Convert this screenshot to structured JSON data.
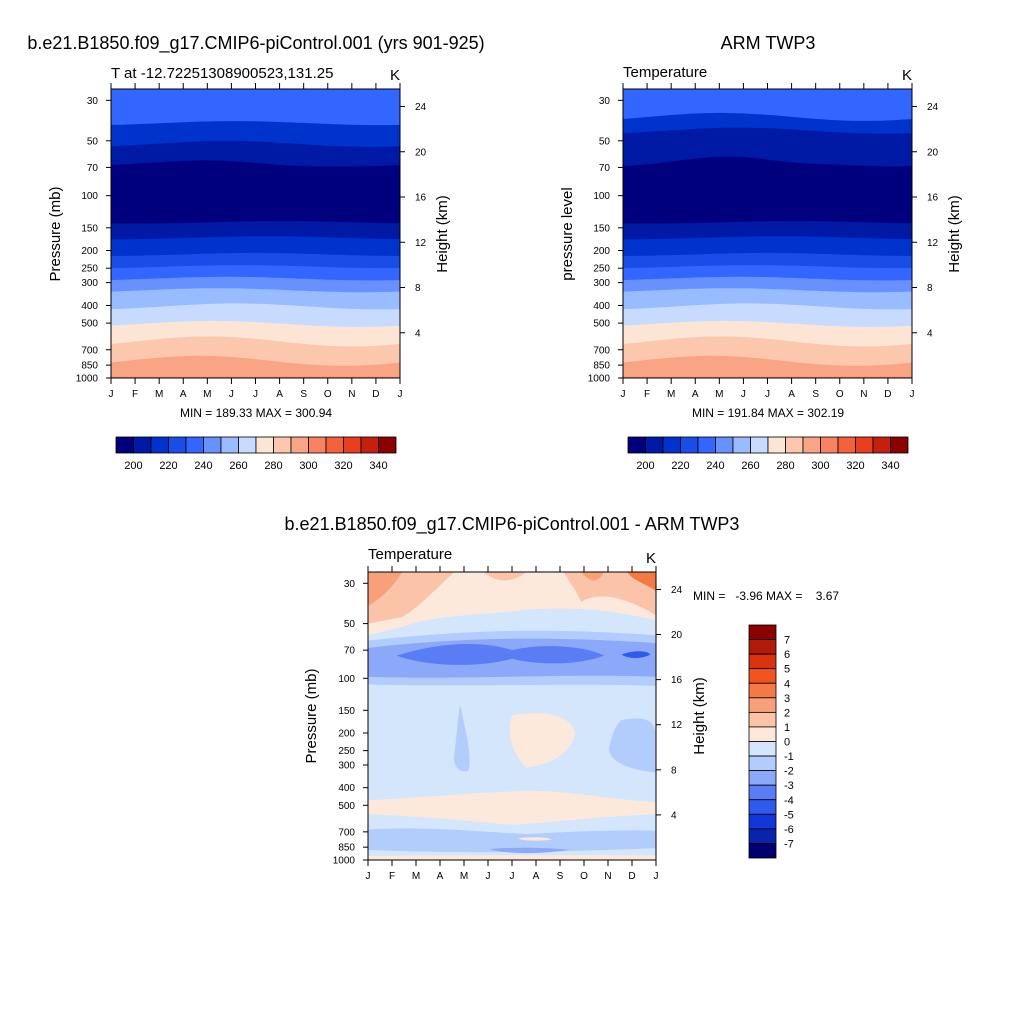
{
  "page": {
    "months": [
      "J",
      "F",
      "M",
      "A",
      "M",
      "J",
      "J",
      "A",
      "S",
      "O",
      "N",
      "D",
      "J"
    ],
    "pressure_ticks": [
      "30",
      "50",
      "70",
      "100",
      "150",
      "200",
      "250",
      "300",
      "400",
      "500",
      "700",
      "850",
      "1000"
    ],
    "height_ticks": [
      "24",
      "20",
      "16",
      "12",
      "8",
      "4"
    ],
    "units_label": "K"
  },
  "chart_data": [
    {
      "type": "heatmap",
      "title": "b.e21.B1850.f09_g17.CMIP6-piControl.001 (yrs 901-925)",
      "subtitle": "T at -12.72251308900523,131.25",
      "units": "K",
      "ylabel": "Pressure (mb)",
      "ylabel_right": "Height (km)",
      "stats": "MIN = 189.33 MAX = 300.94",
      "min": 189.33,
      "max": 300.94,
      "x": [
        "J",
        "F",
        "M",
        "A",
        "M",
        "J",
        "J",
        "A",
        "S",
        "O",
        "N",
        "D",
        "J"
      ],
      "pressure_levels": [
        30,
        50,
        70,
        100,
        150,
        200,
        250,
        300,
        400,
        500,
        700,
        850,
        1000
      ],
      "height_km": [
        24,
        20,
        16,
        12,
        8,
        4
      ],
      "colorbar_ticks": [
        "200",
        "220",
        "240",
        "260",
        "280",
        "300",
        "320",
        "340"
      ],
      "colorbar_levels": [
        190,
        200,
        210,
        220,
        230,
        240,
        250,
        260,
        270,
        280,
        290,
        300,
        310,
        320,
        330,
        340,
        350
      ]
    },
    {
      "type": "heatmap",
      "title": "ARM TWP3",
      "subtitle": "Temperature",
      "units": "K",
      "ylabel": "pressure level",
      "ylabel_right": "Height (km)",
      "stats": "MIN = 191.84 MAX = 302.19",
      "min": 191.84,
      "max": 302.19,
      "x": [
        "J",
        "F",
        "M",
        "A",
        "M",
        "J",
        "J",
        "A",
        "S",
        "O",
        "N",
        "D",
        "J"
      ],
      "pressure_levels": [
        30,
        50,
        70,
        100,
        150,
        200,
        250,
        300,
        400,
        500,
        700,
        850,
        1000
      ],
      "height_km": [
        24,
        20,
        16,
        12,
        8,
        4
      ],
      "colorbar_ticks": [
        "200",
        "220",
        "240",
        "260",
        "280",
        "300",
        "320",
        "340"
      ],
      "colorbar_levels": [
        190,
        200,
        210,
        220,
        230,
        240,
        250,
        260,
        270,
        280,
        290,
        300,
        310,
        320,
        330,
        340,
        350
      ]
    },
    {
      "type": "heatmap",
      "title": "b.e21.B1850.f09_g17.CMIP6-piControl.001 - ARM TWP3",
      "subtitle": "Temperature",
      "units": "K",
      "ylabel": "Pressure (mb)",
      "ylabel_right": "Height (km)",
      "stats": "MIN =   -3.96 MAX =    3.67",
      "min": -3.96,
      "max": 3.67,
      "x": [
        "J",
        "F",
        "M",
        "A",
        "M",
        "J",
        "J",
        "A",
        "S",
        "O",
        "N",
        "D",
        "J"
      ],
      "pressure_levels": [
        30,
        50,
        70,
        100,
        150,
        200,
        250,
        300,
        400,
        500,
        700,
        850,
        1000
      ],
      "height_km": [
        24,
        20,
        16,
        12,
        8,
        4
      ],
      "colorbar_ticks": [
        "7",
        "6",
        "5",
        "4",
        "3",
        "2",
        "1",
        "0",
        "-1",
        "-2",
        "-3",
        "-4",
        "-5",
        "-6",
        "-7"
      ]
    }
  ],
  "colors": {
    "blue_scale": [
      "#00007f",
      "#001aa6",
      "#0033cc",
      "#1a4ce6",
      "#3366ff",
      "#6691ff",
      "#99bbff",
      "#c6dbff",
      "#dde9ff"
    ],
    "red_scale": [
      "#fde5d5",
      "#fcc8ad",
      "#f9a585",
      "#f7835f",
      "#f4623c",
      "#e8401e",
      "#c42010",
      "#8b0000"
    ],
    "diff_scale": [
      "#8b0000",
      "#b01c08",
      "#d8320e",
      "#f2531f",
      "#f47a45",
      "#f8a07a",
      "#fbc4a8",
      "#fde9dc",
      "#d4e6fc",
      "#b2ccfb",
      "#8ba9f8",
      "#5a7cf4",
      "#2f5aee",
      "#1236d8",
      "#0a23ad",
      "#00006e"
    ]
  }
}
